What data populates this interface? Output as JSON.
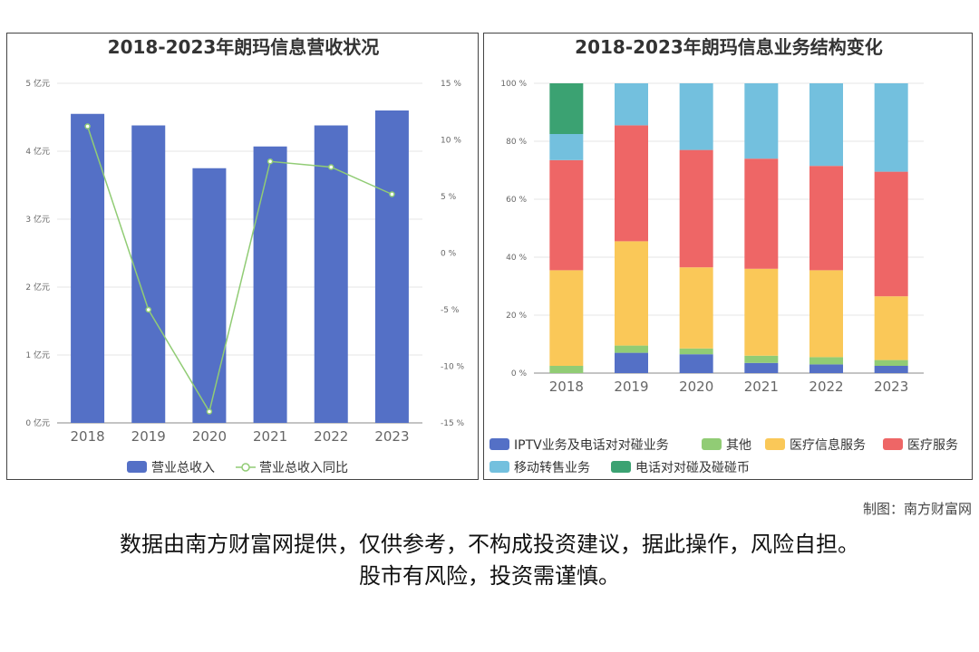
{
  "chart_data": [
    {
      "type": "bar",
      "title": "2018-2023年朗玛信息营收状况",
      "categories": [
        "2018",
        "2019",
        "2020",
        "2021",
        "2022",
        "2023"
      ],
      "series": [
        {
          "name": "营业总收入",
          "type": "bar",
          "axis": "left",
          "unit": "亿元",
          "values": [
            4.55,
            4.38,
            3.75,
            4.07,
            4.38,
            4.6
          ]
        },
        {
          "name": "营业总收入同比",
          "type": "line",
          "axis": "right",
          "unit": "%",
          "values": [
            11.2,
            -5.0,
            -14.0,
            8.1,
            7.6,
            5.2
          ]
        }
      ],
      "y_left": {
        "min": 0,
        "max": 5,
        "step": 1,
        "tick_labels": [
          "0 亿元",
          "1 亿元",
          "2 亿元",
          "3 亿元",
          "4 亿元",
          "5 亿元"
        ]
      },
      "y_right": {
        "min": -15,
        "max": 15,
        "step": 5,
        "tick_labels": [
          "-15 %",
          "-10 %",
          "-5 %",
          "0 %",
          "5 %",
          "10 %",
          "15 %"
        ]
      },
      "grid": true,
      "legend": "bottom"
    },
    {
      "type": "bar",
      "stacked": true,
      "title": "2018-2023年朗玛信息业务结构变化",
      "categories": [
        "2018",
        "2019",
        "2020",
        "2021",
        "2022",
        "2023"
      ],
      "ylim": [
        0,
        100
      ],
      "y_tick_labels": [
        "0 %",
        "20 %",
        "40 %",
        "60 %",
        "80 %",
        "100 %"
      ],
      "series": [
        {
          "name": "IPTV业务及电话对对碰业务",
          "values": [
            0,
            7,
            6.5,
            3.5,
            3,
            2.5
          ]
        },
        {
          "name": "其他",
          "values": [
            2.5,
            2.5,
            2,
            2.5,
            2.5,
            2
          ]
        },
        {
          "name": "医疗信息服务",
          "values": [
            33,
            36,
            28,
            30,
            30,
            22
          ]
        },
        {
          "name": "医疗服务",
          "values": [
            38,
            40,
            40.5,
            38,
            36,
            43
          ]
        },
        {
          "name": "移动转售业务",
          "values": [
            9,
            14.5,
            23,
            26,
            28.5,
            30.5
          ]
        },
        {
          "name": "电话对对碰及碰碰币",
          "values": [
            17.5,
            0,
            0,
            0,
            0,
            0
          ]
        }
      ],
      "grid": true,
      "legend": "bottom"
    }
  ],
  "colors": {
    "revenue_bar": "#5470c6",
    "yoy_line": "#91cc75",
    "stack": [
      "#5470c6",
      "#91cc75",
      "#fac858",
      "#ee6666",
      "#73c0de",
      "#3ba272"
    ]
  },
  "footer": {
    "credit": "制图：南方财富网",
    "disclaimer_line1": "数据由南方财富网提供，仅供参考，不构成投资建议，据此操作，风险自担。",
    "disclaimer_line2": "股市有风险，投资需谨慎。"
  }
}
